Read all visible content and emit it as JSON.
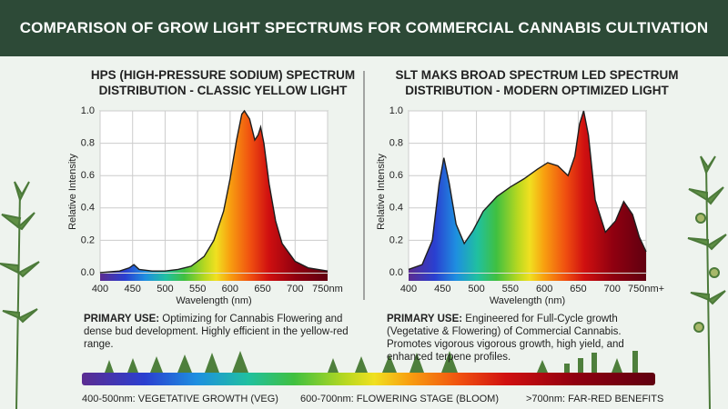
{
  "header": {
    "title": "COMPARISON OF GROW LIGHT SPECTRUMS FOR COMMERCIAL CANNABIS CULTIVATION"
  },
  "chart_data": [
    {
      "type": "line",
      "title": "HPS (HIGH-PRESSURE SODIUM) SPECTRUM DISTRIBUTION - CLASSIC YELLOW LIGHT",
      "xlabel": "Wavelength (nm)",
      "ylabel": "Relative Intensity",
      "x": [
        400,
        430,
        445,
        452,
        460,
        480,
        500,
        520,
        540,
        560,
        575,
        590,
        600,
        610,
        618,
        622,
        630,
        638,
        643,
        647,
        652,
        660,
        670,
        680,
        700,
        720,
        750
      ],
      "values": [
        0.0,
        0.01,
        0.03,
        0.05,
        0.02,
        0.01,
        0.01,
        0.02,
        0.04,
        0.1,
        0.2,
        0.38,
        0.58,
        0.82,
        0.98,
        1.0,
        0.95,
        0.82,
        0.85,
        0.9,
        0.8,
        0.55,
        0.32,
        0.18,
        0.07,
        0.03,
        0.01
      ],
      "color": "#1e1e1e",
      "xlim": [
        400,
        750
      ],
      "ylim": [
        0,
        1
      ],
      "xticks": [
        400,
        450,
        500,
        550,
        600,
        650,
        700,
        {
          "value": 750,
          "label": "750nm"
        }
      ],
      "yticks": [
        {
          "value": 0,
          "label": "0.0"
        },
        0.2,
        0.4,
        0.6,
        0.8,
        {
          "value": 1,
          "label": "1.0"
        }
      ],
      "grid": true,
      "description": {
        "label": "PRIMARY USE:",
        "text": "Optimizing for Cannabis Flowering and dense bud development. Highly efficient in the yellow-red range."
      }
    },
    {
      "type": "line",
      "title": "SLT MAKS BROAD SPECTRUM LED SPECTRUM DISTRIBUTION - MODERN OPTIMIZED LIGHT",
      "xlabel": "Wavelength (nm)",
      "ylabel": "Relative Intensity",
      "x": [
        400,
        420,
        435,
        445,
        452,
        460,
        470,
        482,
        495,
        510,
        530,
        550,
        570,
        590,
        605,
        620,
        635,
        645,
        652,
        658,
        665,
        675,
        690,
        705,
        717,
        730,
        740,
        750
      ],
      "values": [
        0.02,
        0.05,
        0.2,
        0.55,
        0.71,
        0.55,
        0.3,
        0.18,
        0.26,
        0.38,
        0.47,
        0.53,
        0.58,
        0.64,
        0.68,
        0.66,
        0.6,
        0.72,
        0.92,
        1.0,
        0.85,
        0.45,
        0.25,
        0.32,
        0.44,
        0.36,
        0.22,
        0.13
      ],
      "color": "#1e1e1e",
      "xlim": [
        400,
        750
      ],
      "ylim": [
        0,
        1
      ],
      "xticks": [
        400,
        450,
        500,
        550,
        600,
        650,
        700,
        {
          "value": 750,
          "label": "750nm+"
        }
      ],
      "yticks": [
        {
          "value": 0,
          "label": "0.0"
        },
        0.2,
        0.4,
        0.6,
        0.8,
        {
          "value": 1,
          "label": "1.0"
        }
      ],
      "grid": true,
      "description": {
        "label": "PRIMARY USE:",
        "text": "Engineered for Full-Cycle growth (Vegetative & Flowering) of Commercial Cannabis. Promotes vigorous vigorous growth, high yield, and enhanced terpene profiles."
      }
    }
  ],
  "footer": {
    "labels": [
      "400-500nm: VEGETATIVE GROWTH (VEG)",
      "600-700nm: FLOWERING STAGE (BLOOM)",
      ">700nm: FAR-RED BENEFITS"
    ]
  }
}
